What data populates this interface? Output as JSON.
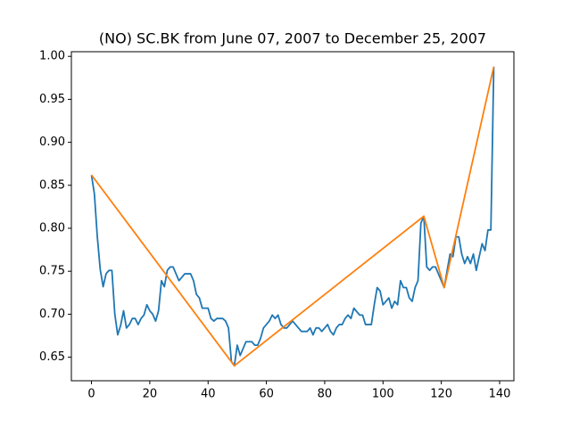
{
  "chart_data": {
    "type": "line",
    "title": "(NO) SC.BK from June 07, 2007 to December 25, 2007",
    "series": [
      {
        "color": "#1f77b4",
        "x": [
          0,
          1,
          2,
          3,
          4,
          5,
          6,
          7,
          8,
          9,
          10,
          11,
          12,
          13,
          14,
          15,
          16,
          17,
          18,
          19,
          20,
          21,
          22,
          23,
          24,
          25,
          26,
          27,
          28,
          29,
          30,
          31,
          32,
          33,
          34,
          35,
          36,
          37,
          38,
          39,
          40,
          41,
          42,
          43,
          44,
          45,
          46,
          47,
          48,
          49,
          50,
          51,
          52,
          53,
          54,
          55,
          56,
          57,
          58,
          59,
          60,
          61,
          62,
          63,
          64,
          65,
          66,
          67,
          68,
          69,
          70,
          71,
          72,
          73,
          74,
          75,
          76,
          77,
          78,
          79,
          80,
          81,
          82,
          83,
          84,
          85,
          86,
          87,
          88,
          89,
          90,
          91,
          92,
          93,
          94,
          95,
          96,
          97,
          98,
          99,
          100,
          101,
          102,
          103,
          104,
          105,
          106,
          107,
          108,
          109,
          110,
          111,
          112,
          113,
          114,
          115,
          116,
          117,
          118,
          119,
          120,
          121,
          122,
          123,
          124,
          125,
          126,
          127,
          128,
          129,
          130,
          131,
          132,
          133,
          134,
          135,
          136,
          137,
          138
        ],
        "values": [
          0.862,
          0.84,
          0.79,
          0.752,
          0.732,
          0.747,
          0.751,
          0.751,
          0.7,
          0.676,
          0.687,
          0.704,
          0.684,
          0.688,
          0.695,
          0.695,
          0.688,
          0.695,
          0.699,
          0.711,
          0.704,
          0.7,
          0.692,
          0.704,
          0.739,
          0.732,
          0.751,
          0.755,
          0.755,
          0.747,
          0.739,
          0.743,
          0.747,
          0.747,
          0.747,
          0.739,
          0.723,
          0.719,
          0.707,
          0.707,
          0.707,
          0.695,
          0.692,
          0.695,
          0.695,
          0.695,
          0.692,
          0.684,
          0.645,
          0.64,
          0.664,
          0.652,
          0.66,
          0.668,
          0.668,
          0.668,
          0.664,
          0.664,
          0.672,
          0.684,
          0.688,
          0.692,
          0.699,
          0.695,
          0.699,
          0.688,
          0.684,
          0.684,
          0.688,
          0.692,
          0.688,
          0.684,
          0.68,
          0.68,
          0.68,
          0.684,
          0.676,
          0.684,
          0.684,
          0.68,
          0.684,
          0.688,
          0.68,
          0.676,
          0.684,
          0.688,
          0.688,
          0.695,
          0.699,
          0.695,
          0.707,
          0.703,
          0.699,
          0.699,
          0.688,
          0.688,
          0.688,
          0.711,
          0.731,
          0.727,
          0.711,
          0.715,
          0.719,
          0.707,
          0.715,
          0.711,
          0.739,
          0.731,
          0.731,
          0.719,
          0.715,
          0.731,
          0.739,
          0.806,
          0.814,
          0.755,
          0.751,
          0.755,
          0.755,
          0.747,
          0.739,
          0.731,
          0.751,
          0.77,
          0.767,
          0.79,
          0.79,
          0.77,
          0.759,
          0.767,
          0.759,
          0.77,
          0.751,
          0.767,
          0.782,
          0.774,
          0.798,
          0.798,
          0.988
        ]
      },
      {
        "color": "#ff7f0e",
        "x": [
          0,
          49,
          114,
          121,
          138
        ],
        "values": [
          0.862,
          0.64,
          0.814,
          0.731,
          0.988
        ]
      }
    ],
    "xlim": [
      -6.9,
      144.9
    ],
    "xticks": [
      0,
      20,
      40,
      60,
      80,
      100,
      120,
      140
    ],
    "ylim": [
      0.6226,
      1.0054
    ],
    "yticks": [
      0.65,
      {
        "value": 0.7,
        "label": "0.70"
      },
      0.75,
      {
        "value": 0.8,
        "label": "0.80"
      },
      0.85,
      {
        "value": 0.9,
        "label": "0.90"
      },
      0.95,
      {
        "value": 1,
        "label": "1.00"
      }
    ]
  }
}
